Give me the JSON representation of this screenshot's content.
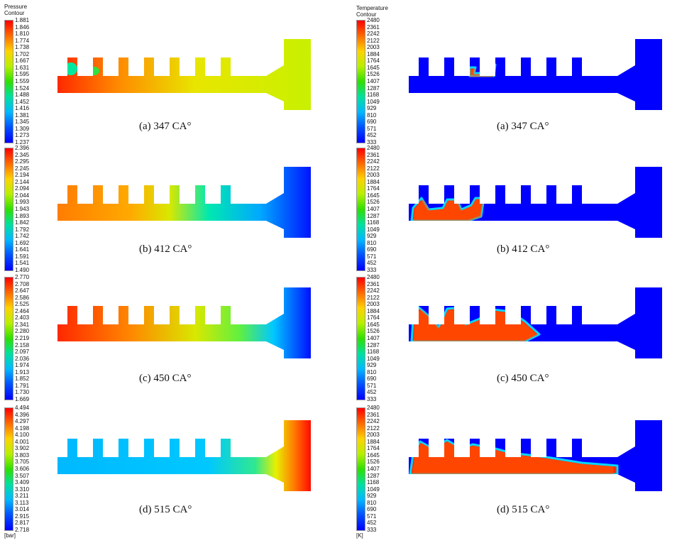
{
  "left_column": {
    "title": "Pressure\nContour",
    "unit": "[bar]",
    "panels": [
      {
        "caption": "(a) 347 CA°",
        "ticks": [
          "1.881",
          "1.846",
          "1.810",
          "1.774",
          "1.738",
          "1.702",
          "1.667",
          "1.631",
          "1.595",
          "1.559",
          "1.524",
          "1.488",
          "1.452",
          "1.416",
          "1.381",
          "1.345",
          "1.309",
          "1.273",
          "1.237"
        ]
      },
      {
        "caption": "(b) 412 CA°",
        "ticks": [
          "2.396",
          "2.345",
          "2.295",
          "2.245",
          "2.194",
          "2.144",
          "2.094",
          "2.044",
          "1.993",
          "1.943",
          "1.893",
          "1.842",
          "1.792",
          "1.742",
          "1.692",
          "1.641",
          "1.591",
          "1.541",
          "1.490"
        ]
      },
      {
        "caption": "(c) 450 CA°",
        "ticks": [
          "2.770",
          "2.708",
          "2.647",
          "2.586",
          "2.525",
          "2.464",
          "2.403",
          "2.341",
          "2.280",
          "2.219",
          "2.158",
          "2.097",
          "2.036",
          "1.974",
          "1.913",
          "1.852",
          "1.791",
          "1.730",
          "1.669"
        ]
      },
      {
        "caption": "(d) 515 CA°",
        "ticks": [
          "4.494",
          "4.396",
          "4.297",
          "4.198",
          "4.100",
          "4.001",
          "3.902",
          "3.803",
          "3.705",
          "3.606",
          "3.507",
          "3.409",
          "3.310",
          "3.211",
          "3.113",
          "3.014",
          "2.915",
          "2.817",
          "2.718"
        ]
      }
    ]
  },
  "right_column": {
    "title": "Temperature\nContour",
    "unit": "[K]",
    "ticks": [
      "2480",
      "2361",
      "2242",
      "2122",
      "2003",
      "1884",
      "1764",
      "1645",
      "1526",
      "1407",
      "1287",
      "1168",
      "1049",
      "929",
      "810",
      "690",
      "571",
      "452",
      "333"
    ],
    "panels": [
      {
        "caption": "(a) 347 CA°"
      },
      {
        "caption": "(b) 412 CA°"
      },
      {
        "caption": "(c) 450 CA°"
      },
      {
        "caption": "(d) 515 CA°"
      }
    ]
  },
  "colors": {
    "colormap": [
      "#ff0000",
      "#ff6a00",
      "#ffd200",
      "#b8f000",
      "#2ee000",
      "#00e0a0",
      "#00b8ff",
      "#0050ff",
      "#0000ff"
    ],
    "cold_blue": "#0000ff",
    "hot_red": "#ff2a00"
  }
}
